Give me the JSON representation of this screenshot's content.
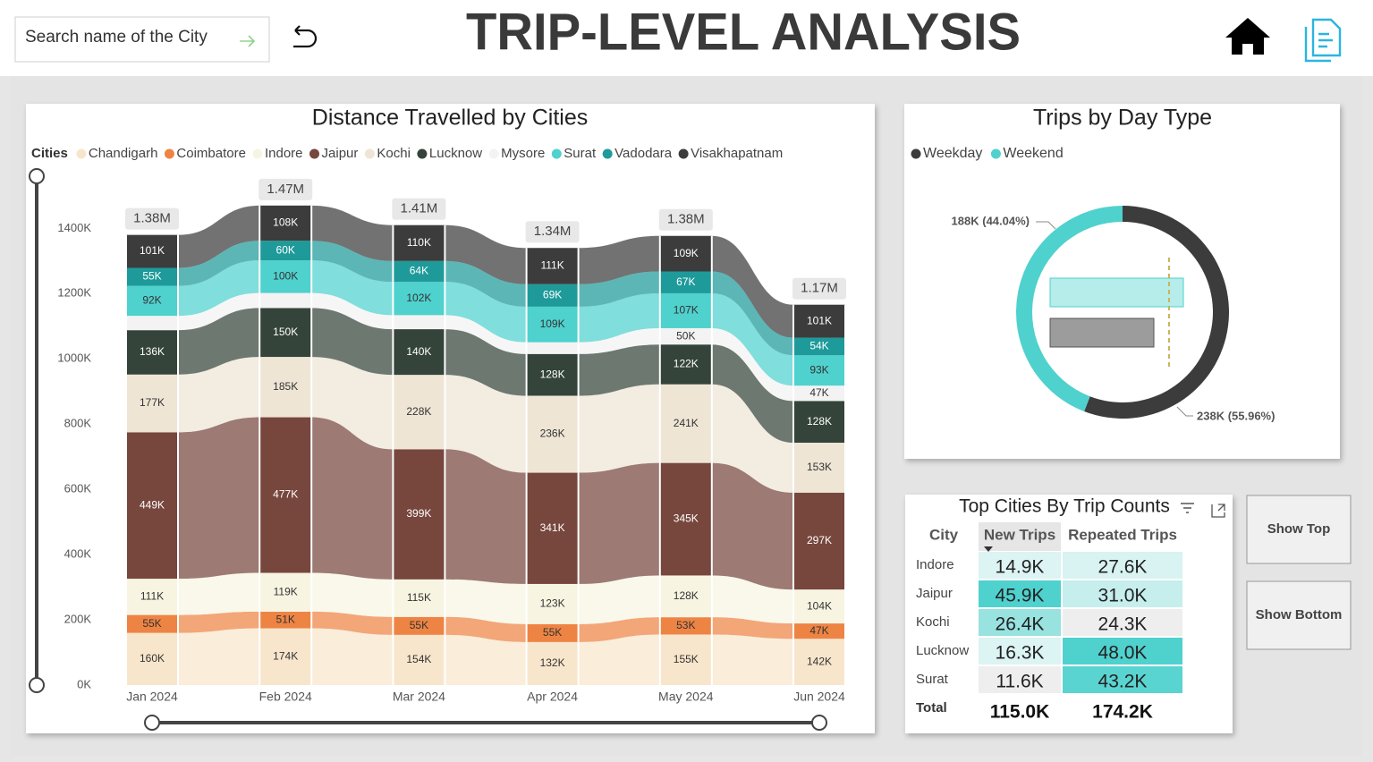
{
  "header": {
    "search_placeholder": "Search name of the City",
    "title": "TRIP-LEVEL ANALYSIS"
  },
  "chart_data": [
    {
      "type": "ribbon",
      "title": "Distance Travelled by Cities",
      "legend_title": "Cities",
      "categories": [
        "Jan 2024",
        "Feb 2024",
        "Mar 2024",
        "Apr 2024",
        "May 2024",
        "Jun 2024"
      ],
      "series": [
        {
          "name": "Chandigarh",
          "color": "#f8e6cc",
          "values": [
            160000,
            174000,
            154000,
            132000,
            155000,
            142000
          ],
          "value_labels": [
            "160K",
            "174K",
            "154K",
            "132K",
            "155K",
            "142K"
          ]
        },
        {
          "name": "Coimbatore",
          "color": "#ee8444",
          "values": [
            55000,
            51000,
            55000,
            55000,
            53000,
            47000
          ],
          "value_labels": [
            "55K",
            "51K",
            "55K",
            "55K",
            "53K",
            "47K"
          ]
        },
        {
          "name": "Indore",
          "color": "#f7f5e2",
          "values": [
            111000,
            119000,
            115000,
            123000,
            128000,
            104000
          ],
          "value_labels": [
            "111K",
            "119K",
            "115K",
            "123K",
            "128K",
            "104K"
          ]
        },
        {
          "name": "Jaipur",
          "color": "#77463d",
          "values": [
            449000,
            477000,
            399000,
            341000,
            345000,
            297000
          ],
          "value_labels": [
            "449K",
            "477K",
            "399K",
            "341K",
            "345K",
            "297K"
          ]
        },
        {
          "name": "Kochi",
          "color": "#eee5d5",
          "values": [
            177000,
            185000,
            228000,
            236000,
            241000,
            153000
          ],
          "value_labels": [
            "177K",
            "185K",
            "228K",
            "236K",
            "241K",
            "153K"
          ]
        },
        {
          "name": "Lucknow",
          "color": "#34443a",
          "values": [
            136000,
            150000,
            140000,
            128000,
            122000,
            128000
          ],
          "value_labels": [
            "136K",
            "150K",
            "140K",
            "128K",
            "122K",
            "128K"
          ]
        },
        {
          "name": "Mysore",
          "color": "#f3f3f3",
          "values": [
            44000,
            46000,
            43000,
            36000,
            50000,
            47000
          ],
          "value_labels": [
            null,
            null,
            null,
            null,
            "50K",
            "47K"
          ]
        },
        {
          "name": "Surat",
          "color": "#4fd1ce",
          "values": [
            92000,
            100000,
            102000,
            109000,
            107000,
            93000
          ],
          "value_labels": [
            "92K",
            "100K",
            "102K",
            "109K",
            "107K",
            "93K"
          ]
        },
        {
          "name": "Vadodara",
          "color": "#1e9a9a",
          "values": [
            55000,
            60000,
            64000,
            69000,
            67000,
            54000
          ],
          "value_labels": [
            "55K",
            "60K",
            "64K",
            "69K",
            "67K",
            "54K"
          ]
        },
        {
          "name": "Visakhapatnam",
          "color": "#3c3c3c",
          "values": [
            101000,
            108000,
            110000,
            111000,
            109000,
            101000
          ],
          "value_labels": [
            "101K",
            "108K",
            "110K",
            "111K",
            "109K",
            "101K"
          ]
        }
      ],
      "totals": [
        1380000,
        1470000,
        1410000,
        1340000,
        1380000,
        1170000
      ],
      "total_labels": [
        "1.38M",
        "1.47M",
        "1.41M",
        "1.34M",
        "1.38M",
        "1.17M"
      ],
      "ylim": [
        0,
        1560000
      ],
      "yticks": [
        {
          "value": 0,
          "label": "0K"
        },
        {
          "value": 200000,
          "label": "200K"
        },
        {
          "value": 400000,
          "label": "400K"
        },
        {
          "value": 600000,
          "label": "600K"
        },
        {
          "value": 800000,
          "label": "800K"
        },
        {
          "value": 1000000,
          "label": "1000K"
        },
        {
          "value": 1200000,
          "label": "1200K"
        },
        {
          "value": 1400000,
          "label": "1400K"
        }
      ],
      "grid": false
    },
    {
      "type": "donut",
      "title": "Trips by Day Type",
      "categories": [
        "Weekday",
        "Weekend"
      ],
      "values": [
        238000,
        188000
      ],
      "value_labels": [
        "238K (55.96%)",
        "188K (44.04%)"
      ],
      "colors": [
        "#3c3c3c",
        "#4fd1ce"
      ]
    }
  ],
  "table": {
    "title": "Top Cities By Trip Counts",
    "columns": [
      "City",
      "New Trips",
      "Repeated Trips"
    ],
    "rows": [
      [
        "Indore",
        "14.9K",
        "27.6K"
      ],
      [
        "Jaipur",
        "45.9K",
        "31.0K"
      ],
      [
        "Kochi",
        "26.4K",
        "24.3K"
      ],
      [
        "Lucknow",
        "16.3K",
        "48.0K"
      ],
      [
        "Surat",
        "11.6K",
        "43.2K"
      ]
    ],
    "total": [
      "Total",
      "115.0K",
      "174.2K"
    ]
  },
  "buttons": [
    "Show Top",
    "Show Bottom"
  ]
}
